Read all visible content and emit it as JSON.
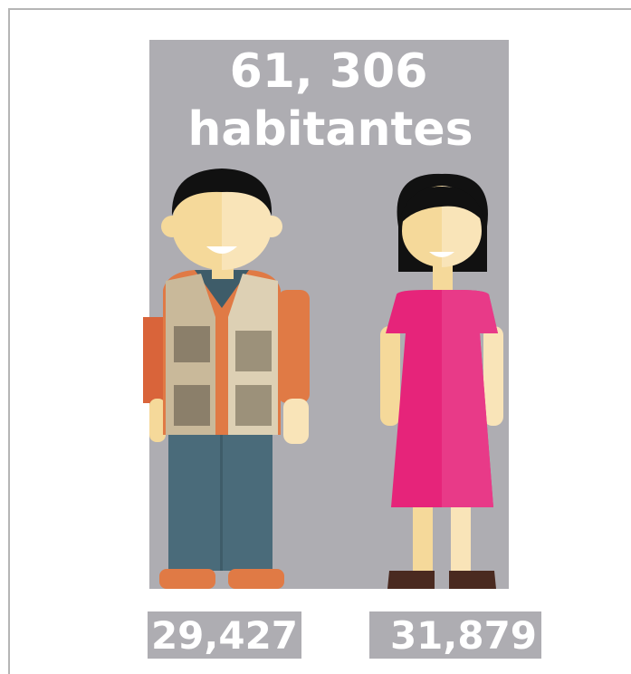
{
  "title": {
    "total": "61, 306",
    "label": "habitantes"
  },
  "figures": [
    {
      "count": "29,427"
    },
    {
      "count": "31,879"
    }
  ]
}
